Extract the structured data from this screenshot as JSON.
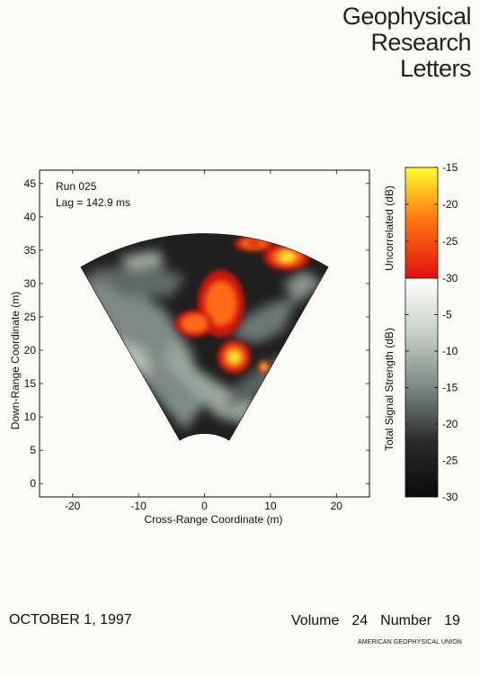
{
  "journal": {
    "title_lines": [
      "Geophysical",
      "Research",
      "Letters"
    ]
  },
  "issue": {
    "date": "OCTOBER 1, 1997",
    "volume_label": "Volume",
    "volume": "24",
    "number_label": "Number",
    "number": "19",
    "publisher": "AMERICAN GEOPHYSICAL UNION"
  },
  "chart_data": {
    "type": "heatmap",
    "annotation": {
      "run": "Run 025",
      "lag": "Lag =  142.9 ms"
    },
    "xlabel": "Cross-Range Coordinate (m)",
    "ylabel": "Down-Range Coordinate (m)",
    "xlim": [
      -25,
      25
    ],
    "ylim": [
      -2,
      47
    ],
    "xticks": [
      -20,
      -10,
      0,
      10,
      20
    ],
    "yticks": [
      0,
      5,
      10,
      15,
      20,
      25,
      30,
      35,
      40,
      45
    ],
    "sector": {
      "r_min": 7.5,
      "r_max": 37.5,
      "half_angle_deg": 30
    },
    "colorbar": {
      "upper": {
        "label": "Uncorrelated (dB)",
        "range": [
          -30,
          -15
        ],
        "ticks": [
          -15,
          -20,
          -25,
          -30
        ],
        "colors": [
          "#ffff30",
          "#ff5a10",
          "#e01010"
        ]
      },
      "lower": {
        "label": "Total Signal Strength (dB)",
        "range": [
          -30,
          0
        ],
        "ticks": [
          -5,
          -10,
          -15,
          -20,
          -25,
          -30
        ],
        "colors": [
          "#ffffff",
          "#a8b2a8",
          "#606a66",
          "#151515"
        ]
      }
    },
    "hot_regions": [
      {
        "x": 2.5,
        "y": 27,
        "rx": 3.5,
        "ry": 5,
        "peak_db": -20
      },
      {
        "x": -1.5,
        "y": 24,
        "rx": 3,
        "ry": 2,
        "peak_db": -22
      },
      {
        "x": 4.5,
        "y": 19,
        "rx": 2.5,
        "ry": 2.5,
        "peak_db": -17
      },
      {
        "x": 12.5,
        "y": 34,
        "rx": 3.5,
        "ry": 2,
        "peak_db": -16
      },
      {
        "x": 7.5,
        "y": 36,
        "rx": 3,
        "ry": 1.2,
        "peak_db": -24
      },
      {
        "x": 9,
        "y": 17.5,
        "rx": 0.8,
        "ry": 1,
        "peak_db": -18
      }
    ]
  }
}
